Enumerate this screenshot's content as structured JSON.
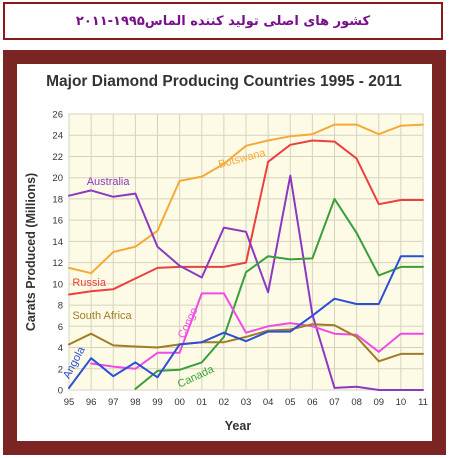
{
  "header": {
    "title": "کشور های اصلی تولید کننده الماس۱۹۹۵-۲۰۱۱"
  },
  "chart_data": {
    "type": "line",
    "title": "Major Diamond Producing Countries 1995 - 2011",
    "xlabel": "Year",
    "ylabel": "Carats Produced (Millions)",
    "x": [
      "95",
      "96",
      "97",
      "98",
      "99",
      "00",
      "01",
      "02",
      "03",
      "04",
      "05",
      "06",
      "07",
      "08",
      "09",
      "10",
      "11"
    ],
    "ylim": [
      0,
      26
    ],
    "yticks": [
      0,
      2,
      4,
      6,
      8,
      10,
      12,
      14,
      16,
      18,
      20,
      22,
      24,
      26
    ],
    "grid": true,
    "plot_background": "#fdfbe6",
    "series": [
      {
        "name": "Botswana",
        "color": "#f5a93a",
        "values": [
          11.5,
          11.0,
          13.0,
          13.5,
          15.0,
          19.7,
          20.1,
          21.3,
          23.0,
          23.5,
          23.9,
          24.1,
          25.0,
          25.0,
          24.1,
          24.9,
          25.0
        ]
      },
      {
        "name": "Russia",
        "color": "#ec4040",
        "values": [
          9.0,
          9.3,
          9.5,
          10.5,
          11.5,
          11.6,
          11.6,
          11.6,
          12.0,
          21.5,
          23.1,
          23.5,
          23.4,
          21.8,
          17.5,
          17.9,
          17.9
        ]
      },
      {
        "name": "Australia",
        "color": "#8c39c2",
        "values": [
          18.3,
          18.8,
          18.2,
          18.5,
          13.5,
          11.7,
          10.6,
          15.3,
          14.9,
          9.2,
          20.2,
          7.1,
          0.2,
          0.3,
          0.0,
          0.0,
          0.0
        ]
      },
      {
        "name": "Canada",
        "color": "#3a9f3a",
        "values": [
          null,
          null,
          null,
          0.1,
          1.8,
          1.9,
          2.6,
          5.0,
          11.1,
          12.6,
          12.3,
          12.4,
          18.0,
          14.8,
          10.8,
          11.6,
          11.6
        ]
      },
      {
        "name": "Congo",
        "color": "#f04be8",
        "values": [
          null,
          2.5,
          2.2,
          2.0,
          3.5,
          3.5,
          9.1,
          9.1,
          5.4,
          6.0,
          6.3,
          6.0,
          5.3,
          5.2,
          3.6,
          5.3,
          5.3
        ]
      },
      {
        "name": "South Africa",
        "color": "#a07c28",
        "values": [
          4.3,
          5.3,
          4.2,
          4.1,
          4.0,
          4.3,
          4.5,
          4.5,
          5.0,
          5.6,
          5.7,
          6.2,
          6.1,
          5.0,
          2.7,
          3.4,
          3.4
        ]
      },
      {
        "name": "Angola",
        "color": "#2d4fd6",
        "values": [
          0.2,
          3.0,
          1.3,
          2.6,
          1.2,
          4.3,
          4.5,
          5.4,
          4.6,
          5.5,
          5.5,
          7.0,
          8.6,
          8.1,
          8.1,
          12.6,
          12.6
        ]
      }
    ],
    "labels": [
      {
        "series": "Botswana",
        "text": "Botswana",
        "x": 6.8,
        "y": 20.9,
        "angle": -15
      },
      {
        "series": "Russia",
        "text": "Russia",
        "x": 0.15,
        "y": 9.8,
        "angle": 0
      },
      {
        "series": "Australia",
        "text": "Australia",
        "x": 0.8,
        "y": 19.3,
        "angle": 0
      },
      {
        "series": "Canada",
        "text": "Canada",
        "x": 5.0,
        "y": 0.2,
        "angle": -25
      },
      {
        "series": "Congo",
        "text": "Congo",
        "x": 5.2,
        "y": 4.8,
        "angle": -65
      },
      {
        "series": "South Africa",
        "text": "South Africa",
        "x": 0.15,
        "y": 6.7,
        "angle": 0
      },
      {
        "series": "Angola",
        "text": "Angola",
        "x": 0.0,
        "y": 1.0,
        "angle": -62
      }
    ]
  }
}
